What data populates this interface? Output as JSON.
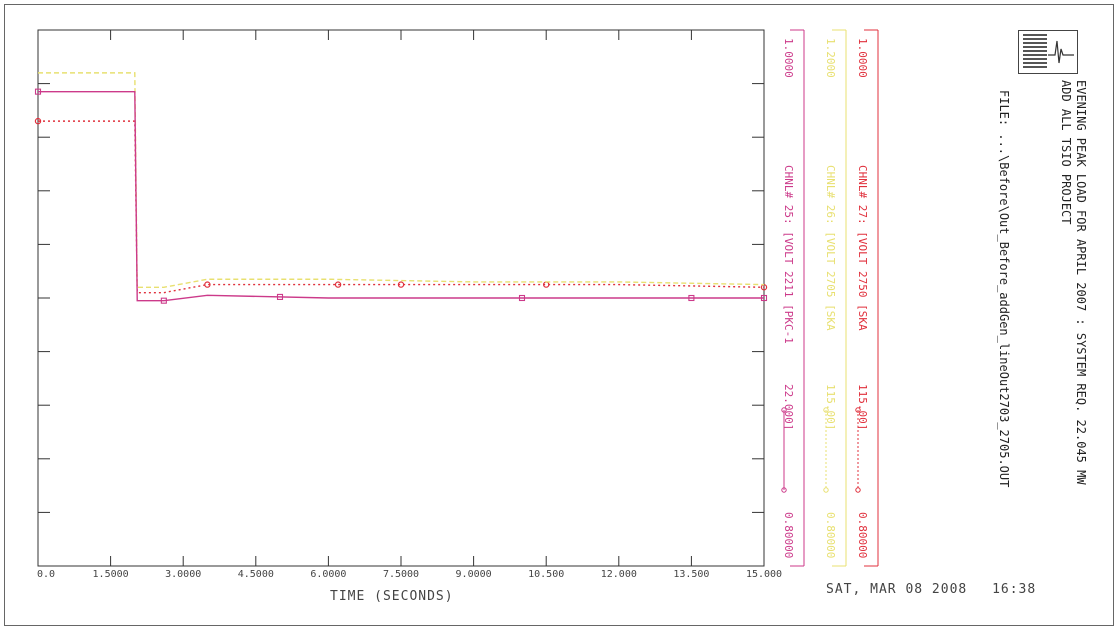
{
  "header": {
    "title_line1": "EVENING PEAK LOAD FOR APRIL 2007 : SYSTEM REQ. 22.045 MW",
    "title_line2": "ADD ALL TSIO PROJECT",
    "file_line": "FILE: ...\\Before\\Out_Before_addGen_lineOut2703_2705.OUT"
  },
  "footer": {
    "date": "SAT, MAR 08 2008",
    "time": "16:38"
  },
  "colors": {
    "red": "#e0303c",
    "magenta": "#cc3a8a",
    "yellow": "#e8e070",
    "frame": "#333333"
  },
  "channels": [
    {
      "label": "CHNL# 27: [VOLT 2750 [SKA",
      "max": "1.0000",
      "min": "0.80000",
      "base": "115.00]",
      "color": "red"
    },
    {
      "label": "CHNL# 26: [VOLT 2705 [SKA",
      "max": "1.2000",
      "min": "0.80000",
      "base": "115.00]",
      "color": "yellow"
    },
    {
      "label": "CHNL# 25: [VOLT 2211 [PKC-1",
      "max": "1.0000",
      "min": "0.80000",
      "base": "22.000]",
      "color": "magenta"
    }
  ],
  "chart_data": {
    "type": "line",
    "title": "EVENING PEAK LOAD FOR APRIL 2007 : SYSTEM REQ. 22.045 MW",
    "xlabel": "TIME (SECONDS)",
    "ylabel": "",
    "xlim": [
      0,
      15
    ],
    "ylim": [
      0.8,
      1.0
    ],
    "x_ticks": [
      "0.0",
      "1.5000",
      "3.0000",
      "4.5000",
      "6.0000",
      "7.5000",
      "9.0000",
      "10.500",
      "12.000",
      "13.500",
      "15.000"
    ],
    "grid": false,
    "series": [
      {
        "name": "CHNL# 27: [VOLT 2750 [SKA",
        "color": "red",
        "style": "dotted",
        "marker": "circle",
        "x": [
          0,
          2.0,
          2.05,
          2.6,
          3.5,
          6,
          9,
          12,
          15
        ],
        "y": [
          0.966,
          0.966,
          0.902,
          0.902,
          0.905,
          0.905,
          0.905,
          0.905,
          0.904
        ]
      },
      {
        "name": "CHNL# 26: [VOLT 2705 [SKA",
        "color": "yellow",
        "style": "dashed",
        "marker": "none",
        "x": [
          0,
          2.0,
          2.05,
          2.6,
          3.5,
          6,
          9,
          12,
          15
        ],
        "y": [
          0.984,
          0.984,
          0.904,
          0.904,
          0.907,
          0.907,
          0.906,
          0.906,
          0.905
        ]
      },
      {
        "name": "CHNL# 25: [VOLT 2211 [PKC-1",
        "color": "magenta",
        "style": "solid",
        "marker": "square",
        "x": [
          0,
          2.0,
          2.05,
          2.6,
          3.5,
          6,
          9,
          12,
          15
        ],
        "y": [
          0.977,
          0.977,
          0.899,
          0.899,
          0.901,
          0.9,
          0.9,
          0.9,
          0.9
        ]
      }
    ]
  }
}
